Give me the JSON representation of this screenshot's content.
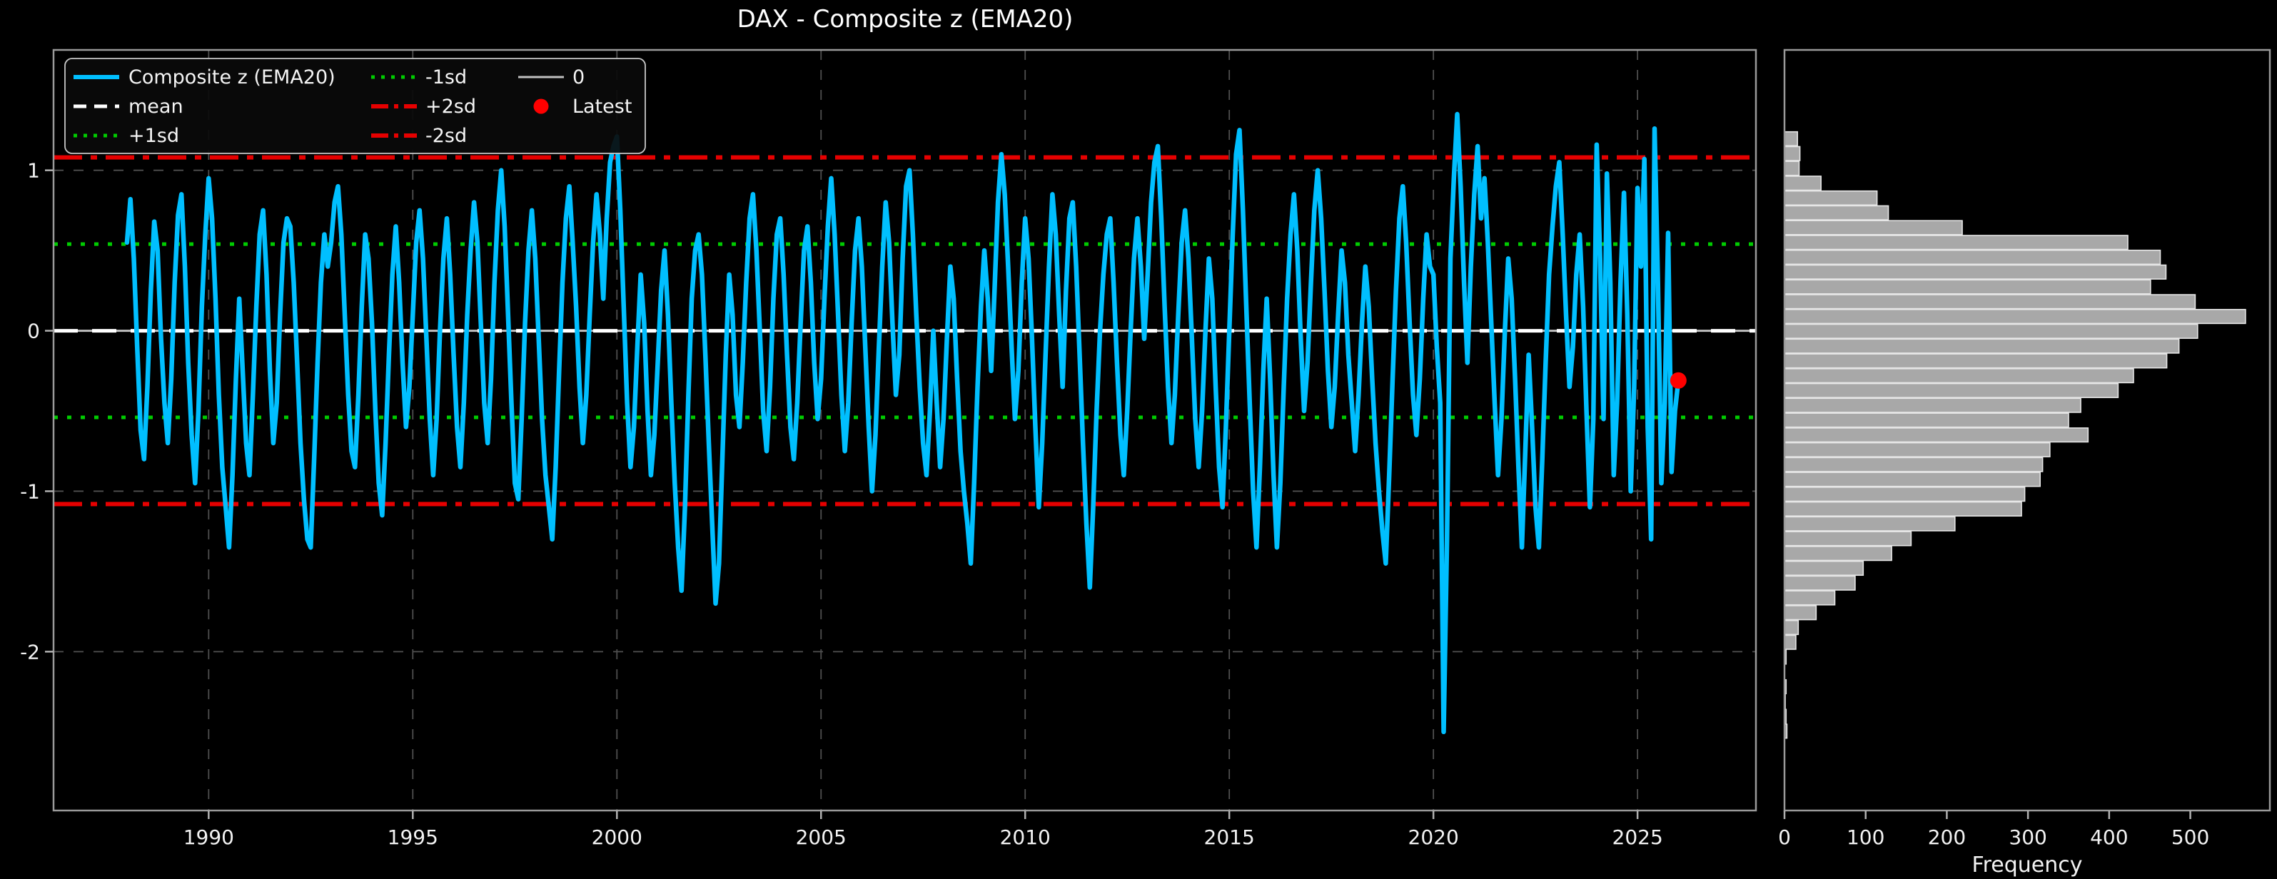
{
  "figure": {
    "title": "DAX - Composite z (EMA20)",
    "background_color": "#000000",
    "text_color": "#f2f2f2",
    "spine_color": "#9a9a9a",
    "grid_color": "#4f4f4f",
    "tick_color": "#b0b0b0"
  },
  "chart_data": [
    {
      "type": "line",
      "title": "DAX - Composite z (EMA20)",
      "xlabel": "",
      "ylabel": "",
      "xlim": [
        1986.2,
        2027.9
      ],
      "ylim": [
        -2.99,
        1.75
      ],
      "xticks": [
        1990,
        1995,
        2000,
        2005,
        2010,
        2015,
        2020,
        2025
      ],
      "yticks": [
        1,
        0,
        -1,
        -2
      ],
      "grid": true,
      "legend_position": "upper-left",
      "series": [
        {
          "name": "Composite z (EMA20)",
          "color": "#00BFFF",
          "x_start": 1988.0,
          "x_step": 0.0833333,
          "values": [
            0.55,
            0.82,
            0.45,
            -0.1,
            -0.62,
            -0.8,
            -0.35,
            0.25,
            0.68,
            0.5,
            -0.05,
            -0.45,
            -0.7,
            -0.3,
            0.3,
            0.72,
            0.85,
            0.4,
            -0.2,
            -0.65,
            -0.95,
            -0.5,
            0.15,
            0.6,
            0.95,
            0.7,
            0.2,
            -0.4,
            -0.85,
            -1.1,
            -1.35,
            -0.9,
            -0.3,
            0.2,
            -0.25,
            -0.7,
            -0.9,
            -0.4,
            0.15,
            0.6,
            0.75,
            0.35,
            -0.25,
            -0.7,
            -0.45,
            0.1,
            0.55,
            0.7,
            0.65,
            0.3,
            -0.2,
            -0.7,
            -1.05,
            -1.3,
            -1.35,
            -0.8,
            -0.2,
            0.3,
            0.6,
            0.4,
            0.55,
            0.8,
            0.9,
            0.6,
            0.1,
            -0.4,
            -0.75,
            -0.85,
            -0.4,
            0.15,
            0.6,
            0.45,
            0.05,
            -0.5,
            -0.95,
            -1.15,
            -0.7,
            -0.15,
            0.35,
            0.65,
            0.3,
            -0.2,
            -0.6,
            -0.35,
            0.1,
            0.55,
            0.75,
            0.45,
            -0.05,
            -0.55,
            -0.9,
            -0.55,
            0.0,
            0.45,
            0.7,
            0.35,
            -0.15,
            -0.6,
            -0.85,
            -0.45,
            0.1,
            0.5,
            0.8,
            0.55,
            0.05,
            -0.45,
            -0.7,
            -0.3,
            0.3,
            0.75,
            1.0,
            0.65,
            0.1,
            -0.45,
            -0.95,
            -1.05,
            -0.55,
            0.05,
            0.5,
            0.75,
            0.45,
            -0.05,
            -0.55,
            -0.9,
            -1.1,
            -1.3,
            -0.85,
            -0.25,
            0.3,
            0.7,
            0.9,
            0.55,
            0.15,
            -0.35,
            -0.7,
            -0.4,
            0.1,
            0.55,
            0.85,
            0.6,
            0.2,
            0.7,
            1.05,
            1.15,
            1.21,
            0.75,
            0.15,
            -0.45,
            -0.85,
            -0.6,
            -0.1,
            0.35,
            0.05,
            -0.5,
            -0.9,
            -0.65,
            -0.2,
            0.25,
            0.5,
            0.1,
            -0.45,
            -0.95,
            -1.35,
            -1.62,
            -1.1,
            -0.4,
            0.2,
            0.5,
            0.6,
            0.35,
            -0.15,
            -0.7,
            -1.2,
            -1.7,
            -1.45,
            -0.8,
            -0.15,
            0.35,
            0.1,
            -0.4,
            -0.6,
            -0.2,
            0.3,
            0.7,
            0.85,
            0.5,
            0.0,
            -0.5,
            -0.75,
            -0.35,
            0.2,
            0.6,
            0.7,
            0.35,
            -0.15,
            -0.6,
            -0.8,
            -0.45,
            0.05,
            0.5,
            0.65,
            0.3,
            -0.2,
            -0.55,
            -0.3,
            0.2,
            0.65,
            0.95,
            0.6,
            0.1,
            -0.4,
            -0.75,
            -0.45,
            0.05,
            0.5,
            0.7,
            0.4,
            -0.1,
            -0.6,
            -1.0,
            -0.65,
            -0.1,
            0.4,
            0.8,
            0.55,
            0.05,
            -0.4,
            -0.15,
            0.45,
            0.9,
            1.0,
            0.6,
            0.1,
            -0.35,
            -0.7,
            -0.9,
            -0.5,
            0.0,
            -0.45,
            -0.85,
            -0.55,
            -0.05,
            0.4,
            0.2,
            -0.3,
            -0.75,
            -1.0,
            -1.2,
            -1.45,
            -0.95,
            -0.35,
            0.15,
            0.5,
            0.2,
            -0.25,
            0.25,
            0.8,
            1.1,
            0.85,
            0.4,
            -0.1,
            -0.55,
            -0.25,
            0.3,
            0.7,
            0.45,
            -0.05,
            -0.6,
            -1.1,
            -0.7,
            -0.15,
            0.4,
            0.85,
            0.6,
            0.1,
            -0.35,
            0.25,
            0.7,
            0.8,
            0.4,
            -0.15,
            -0.7,
            -1.2,
            -1.6,
            -1.1,
            -0.5,
            0.0,
            0.35,
            0.6,
            0.7,
            0.3,
            -0.2,
            -0.65,
            -0.9,
            -0.5,
            0.0,
            0.45,
            0.7,
            0.4,
            -0.05,
            0.35,
            0.8,
            1.05,
            1.15,
            0.7,
            0.15,
            -0.35,
            -0.7,
            -0.4,
            0.1,
            0.55,
            0.75,
            0.45,
            -0.05,
            -0.55,
            -0.85,
            -0.5,
            0.0,
            0.45,
            0.2,
            -0.35,
            -0.85,
            -1.1,
            -0.6,
            0.0,
            0.6,
            1.1,
            1.25,
            0.75,
            0.15,
            -0.45,
            -1.0,
            -1.35,
            -0.85,
            -0.25,
            0.2,
            -0.3,
            -0.9,
            -1.35,
            -0.95,
            -0.35,
            0.2,
            0.6,
            0.85,
            0.5,
            -0.05,
            -0.5,
            -0.2,
            0.3,
            0.75,
            1.0,
            0.7,
            0.25,
            -0.25,
            -0.6,
            -0.35,
            0.1,
            0.5,
            0.3,
            -0.15,
            -0.45,
            -0.75,
            -0.4,
            0.05,
            0.4,
            0.15,
            -0.3,
            -0.7,
            -1.0,
            -1.25,
            -1.45,
            -0.9,
            -0.3,
            0.25,
            0.7,
            0.9,
            0.55,
            0.05,
            -0.4,
            -0.65,
            -0.3,
            0.2,
            0.6,
            0.4,
            0.35,
            -0.1,
            -0.45,
            -2.5,
            -1.3,
            0.45,
            0.95,
            1.35,
            0.9,
            0.3,
            -0.2,
            0.4,
            0.85,
            1.15,
            0.7,
            0.95,
            0.55,
            0.05,
            -0.45,
            -0.9,
            -0.55,
            0.0,
            0.45,
            0.2,
            -0.3,
            -0.85,
            -1.35,
            -0.75,
            -0.15,
            -0.6,
            -1.1,
            -1.35,
            -0.8,
            -0.2,
            0.35,
            0.65,
            0.9,
            1.05,
            0.6,
            0.1,
            -0.35,
            -0.1,
            0.35,
            0.6,
            0.15,
            -0.5,
            -1.1,
            -0.55,
            1.16,
            0.45,
            -0.55,
            0.98,
            0.3,
            -0.9,
            -0.45,
            0.3,
            0.86,
            0.1,
            -1.0,
            -0.35,
            0.89,
            0.4,
            1.07,
            -0.6,
            -1.3,
            1.26,
            0.3,
            -0.95,
            -0.45,
            0.61,
            -0.88,
            -0.5,
            -0.31
          ]
        }
      ],
      "hlines": [
        {
          "name": "zero",
          "label": "0",
          "value": 0.0,
          "color": "#c0c0c0",
          "style": "solid"
        },
        {
          "name": "mean",
          "label": "mean",
          "value": 0.0,
          "color": "#ffffff",
          "style": "dashed"
        },
        {
          "name": "plus1sd",
          "label": "+1sd",
          "value": 0.54,
          "color": "#00cc00",
          "style": "dotted"
        },
        {
          "name": "minus1sd",
          "label": "-1sd",
          "value": -0.54,
          "color": "#00cc00",
          "style": "dotted"
        },
        {
          "name": "plus2sd",
          "label": "+2sd",
          "value": 1.08,
          "color": "#e60000",
          "style": "dashdot"
        },
        {
          "name": "minus2sd",
          "label": "-2sd",
          "value": -1.08,
          "color": "#e60000",
          "style": "dashdot"
        }
      ],
      "latest": {
        "label": "Latest",
        "x": 2026.0,
        "y": -0.31,
        "color": "#ff0000"
      },
      "legend": [
        {
          "label": "Composite z (EMA20)",
          "style": "solid",
          "color": "#00BFFF",
          "lw": 6
        },
        {
          "label": "mean",
          "style": "dashed",
          "color": "#ffffff",
          "lw": 5
        },
        {
          "label": "+1sd",
          "style": "dotted",
          "color": "#00cc00",
          "lw": 5
        },
        {
          "label": "-1sd",
          "style": "dotted",
          "color": "#00cc00",
          "lw": 5
        },
        {
          "label": "+2sd",
          "style": "dashdot",
          "color": "#e60000",
          "lw": 6
        },
        {
          "label": "-2sd",
          "style": "dashdot",
          "color": "#e60000",
          "lw": 6
        },
        {
          "label": "0",
          "style": "solid",
          "color": "#c0c0c0",
          "lw": 3
        },
        {
          "label": "Latest",
          "style": "marker",
          "color": "#ff0000",
          "lw": 0
        }
      ]
    },
    {
      "type": "bar-horizontal",
      "title": "",
      "xlabel": "Frequency",
      "ylabel": "",
      "xlim": [
        0,
        598
      ],
      "xticks": [
        0,
        100,
        200,
        300,
        400,
        500
      ],
      "grid": false,
      "bar_color": "#a8a8a8",
      "bar_edge_color": "#e6e6e6",
      "bins": {
        "z_top": 1.24,
        "bin_width": 0.0923,
        "frequencies": [
          16,
          19,
          18,
          45,
          114,
          128,
          219,
          423,
          463,
          470,
          451,
          506,
          568,
          509,
          486,
          471,
          430,
          411,
          365,
          350,
          374,
          327,
          318,
          315,
          296,
          292,
          210,
          156,
          132,
          97,
          87,
          62,
          39,
          17,
          14,
          2,
          0,
          2,
          1,
          2,
          3
        ]
      }
    }
  ]
}
